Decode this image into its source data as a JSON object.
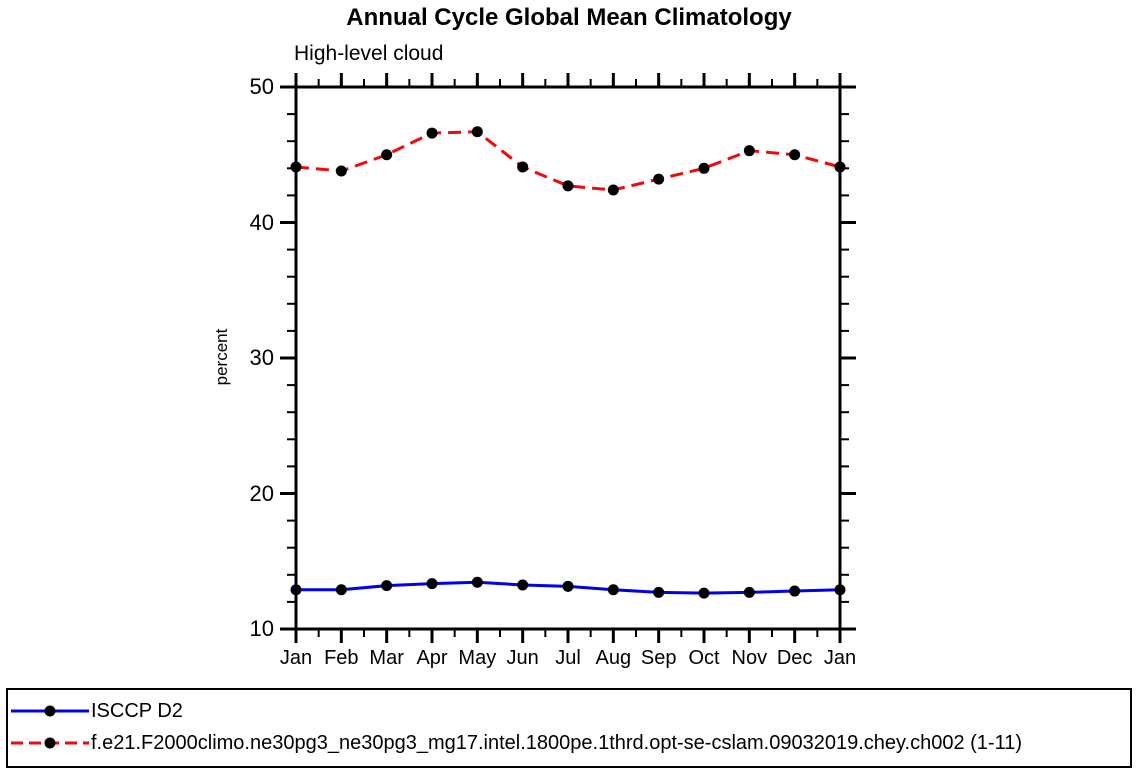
{
  "title": "Annual Cycle Global Mean Climatology",
  "subtitle": "High-level cloud",
  "axis": {
    "y_title": "percent",
    "y_tick_labels": [
      "50",
      "40",
      "30",
      "20",
      "10"
    ],
    "x_tick_labels": [
      "Jan",
      "Feb",
      "Mar",
      "Apr",
      "May",
      "Jun",
      "Jul",
      "Aug",
      "Sep",
      "Oct",
      "Nov",
      "Dec",
      "Jan"
    ]
  },
  "colors": {
    "axis": "#000000",
    "marker": "#000000",
    "obs_line": "#0202e8",
    "model_line": "#ef0a0e"
  },
  "legend": {
    "items": [
      {
        "label": "ISCCP D2"
      },
      {
        "label": "f.e21.F2000climo.ne30pg3_ne30pg3_mg17.intel.1800pe.1thrd.opt-se-cslam.09032019.chey.ch002 (1-11)"
      }
    ]
  },
  "chart_data": {
    "type": "line",
    "title": "Annual Cycle Global Mean Climatology",
    "subtitle": "High-level cloud",
    "xlabel": "",
    "ylabel": "percent",
    "x_categories": [
      "Jan",
      "Feb",
      "Mar",
      "Apr",
      "May",
      "Jun",
      "Jul",
      "Aug",
      "Sep",
      "Oct",
      "Nov",
      "Dec",
      "Jan"
    ],
    "ylim": [
      10,
      50
    ],
    "yticks": [
      10,
      20,
      30,
      40,
      50
    ],
    "y_minor_step": 2,
    "x_minor_step": 0.5,
    "grid": false,
    "legend_position": "bottom-left-boxed",
    "series": [
      {
        "name": "ISCCP D2",
        "color": "#0202e8",
        "line_style": "solid",
        "marker": "filled-circle",
        "marker_color": "#000000",
        "values": [
          12.9,
          12.9,
          13.2,
          13.35,
          13.45,
          13.25,
          13.15,
          12.9,
          12.7,
          12.65,
          12.7,
          12.8,
          12.9
        ]
      },
      {
        "name": "f.e21.F2000climo.ne30pg3_ne30pg3_mg17.intel.1800pe.1thrd.opt-se-cslam.09032019.chey.ch002 (1-11)",
        "color": "#ef0a0e",
        "line_style": "dashed",
        "marker": "filled-circle",
        "marker_color": "#000000",
        "values": [
          44.1,
          43.8,
          45.0,
          46.6,
          46.7,
          44.1,
          42.7,
          42.4,
          43.2,
          44.0,
          45.3,
          45.0,
          44.1
        ]
      }
    ]
  }
}
